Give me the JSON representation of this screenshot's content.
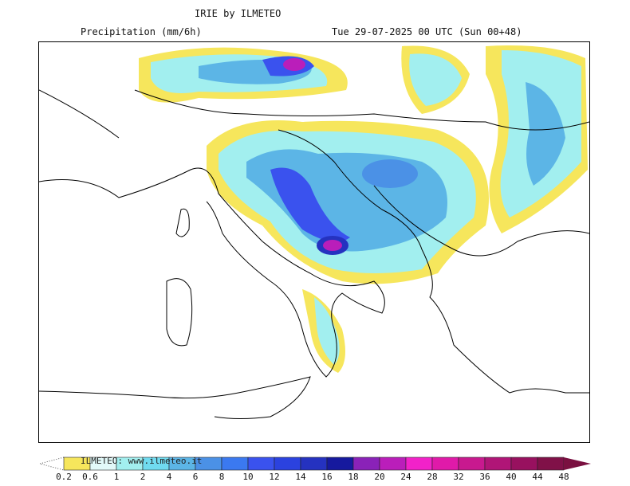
{
  "header": {
    "title": "IRIE by ILMETEO",
    "subtitle": "Precipitation (mm/6h)",
    "valid_time": "Tue 29-07-2025 00 UTC (Sun 00+48)"
  },
  "legend": {
    "watermark": "ILMETEO: www.ilmeteo.it",
    "labels": [
      "0.2",
      "0.6",
      "1",
      "2",
      "4",
      "6",
      "8",
      "10",
      "12",
      "14",
      "16",
      "18",
      "20",
      "24",
      "28",
      "32",
      "36",
      "40",
      "44",
      "48"
    ],
    "colors": [
      "#f6e65c",
      "#e2f9f9",
      "#a2efef",
      "#70dbf0",
      "#5cb5e6",
      "#4b91e6",
      "#3b79f0",
      "#3a52ee",
      "#2b42df",
      "#2532c0",
      "#16199e",
      "#8a22b8",
      "#ba1eba",
      "#f222c9",
      "#e01aa9",
      "#c8198f",
      "#b01577",
      "#98115f",
      "#801148"
    ],
    "overflow_color": "#7a1040"
  }
}
